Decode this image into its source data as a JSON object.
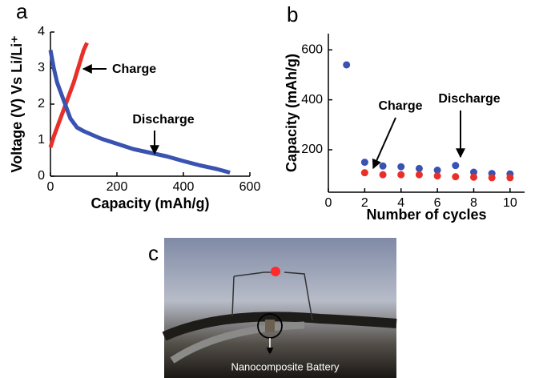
{
  "chart_data": [
    {
      "type": "line",
      "panel": "a",
      "x_label": "Capacity (mAh/g)",
      "y_label": "Voltage (V) Vs Li/Li⁺",
      "xlim": [
        0,
        600
      ],
      "xticks": [
        0,
        200,
        400,
        600
      ],
      "ylim": [
        0,
        4
      ],
      "yticks": [
        0,
        1,
        2,
        3,
        4
      ],
      "series": [
        {
          "color": "#e8302a",
          "x": [
            0,
            10,
            20,
            30,
            40,
            50,
            60,
            70,
            80,
            90,
            100,
            110
          ],
          "values": [
            0.8,
            1.1,
            1.35,
            1.6,
            1.85,
            2.1,
            2.35,
            2.6,
            2.9,
            3.2,
            3.5,
            3.7
          ]
        },
        {
          "color": "#3a52b0",
          "x": [
            0,
            10,
            20,
            40,
            60,
            80,
            100,
            150,
            200,
            250,
            300,
            350,
            400,
            450,
            500,
            540
          ],
          "values": [
            3.5,
            3.0,
            2.6,
            2.1,
            1.6,
            1.35,
            1.25,
            1.05,
            0.9,
            0.75,
            0.65,
            0.55,
            0.42,
            0.3,
            0.2,
            0.1
          ]
        }
      ],
      "annotations": [
        {
          "text": "Charge"
        },
        {
          "text": "Discharge"
        }
      ]
    },
    {
      "type": "scatter",
      "panel": "b",
      "x_label": "Number of cycles",
      "y_label": "Capacity (mAh/g)",
      "xlim": [
        0,
        10.8
      ],
      "xticks": [
        0,
        2,
        4,
        6,
        8,
        10
      ],
      "ylim": [
        30,
        665
      ],
      "yticks": [
        200,
        400,
        600
      ],
      "series": [
        {
          "color": "#3a52b0",
          "x": [
            1,
            2,
            3,
            4,
            5,
            6,
            7,
            8,
            9,
            10
          ],
          "values": [
            540,
            150,
            135,
            132,
            125,
            118,
            137,
            110,
            105,
            103
          ]
        },
        {
          "color": "#e8302a",
          "x": [
            1,
            2,
            3,
            4,
            5,
            6,
            7,
            8,
            9,
            10
          ],
          "values": [
            null,
            108,
            100,
            100,
            100,
            95,
            92,
            90,
            88,
            88
          ]
        }
      ],
      "annotations": [
        {
          "text": "Charge"
        },
        {
          "text": "Discharge"
        }
      ]
    }
  ],
  "photo": {
    "panel": "c",
    "label": "Nanocomposite Battery"
  }
}
